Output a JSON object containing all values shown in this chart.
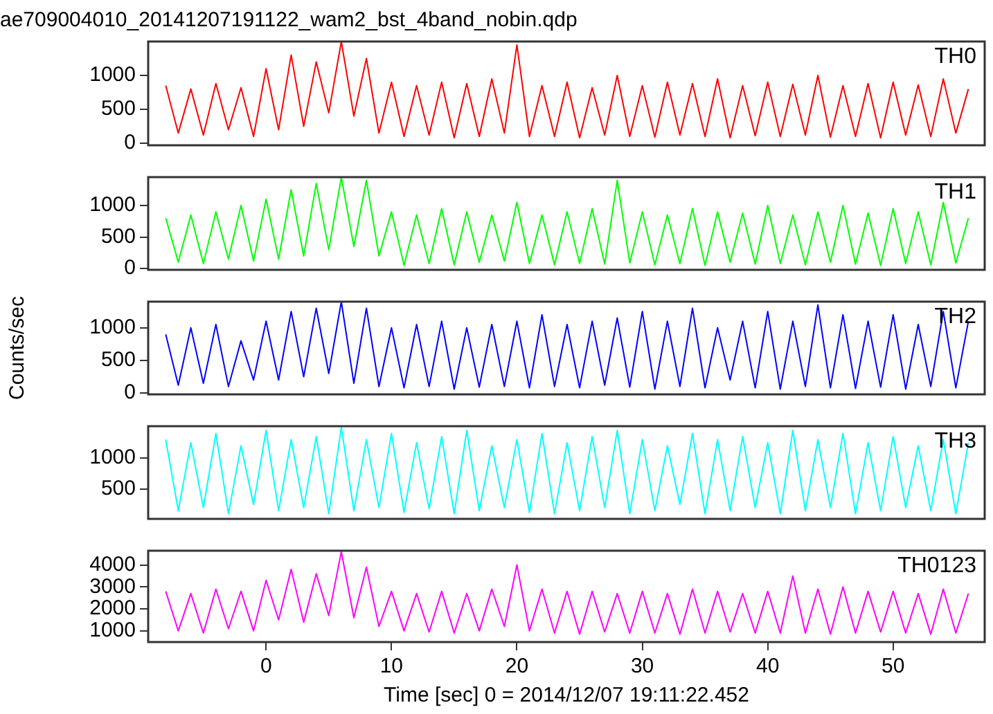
{
  "chart_data": [
    {
      "type": "line",
      "title": "ae709004010_20141207191122_wam2_bst_4band_nobin.qdp",
      "x": [
        -8,
        -7,
        -6,
        -5,
        -4,
        -3,
        -2,
        -1,
        0,
        1,
        2,
        3,
        4,
        5,
        6,
        7,
        8,
        9,
        10,
        11,
        12,
        13,
        14,
        15,
        16,
        17,
        18,
        19,
        20,
        21,
        22,
        23,
        24,
        25,
        26,
        27,
        28,
        29,
        30,
        31,
        32,
        33,
        34,
        35,
        36,
        37,
        38,
        39,
        40,
        41,
        42,
        43,
        44,
        45,
        46,
        47,
        48,
        49,
        50,
        51,
        52,
        53,
        54,
        55,
        56
      ],
      "xlim": [
        -9.4,
        57.3
      ],
      "ylim": [
        -30,
        1500
      ],
      "yticks": [
        0,
        500,
        1000
      ],
      "tick_labels": "y",
      "grid": false,
      "legend": false,
      "series": [
        {
          "name": "TH0",
          "color": "#ff0000",
          "values": [
            850,
            150,
            800,
            120,
            880,
            200,
            820,
            100,
            1100,
            200,
            1300,
            250,
            1200,
            450,
            1500,
            400,
            1250,
            150,
            900,
            100,
            850,
            120,
            900,
            80,
            880,
            100,
            950,
            150,
            1450,
            100,
            850,
            100,
            900,
            80,
            820,
            120,
            1000,
            100,
            850,
            90,
            900,
            120,
            880,
            100,
            950,
            80,
            850,
            110,
            900,
            100,
            870,
            120,
            1000,
            90,
            850,
            100,
            880,
            80,
            900,
            120,
            860,
            100,
            950,
            150,
            800
          ]
        }
      ]
    },
    {
      "type": "line",
      "x": [
        -8,
        -7,
        -6,
        -5,
        -4,
        -3,
        -2,
        -1,
        0,
        1,
        2,
        3,
        4,
        5,
        6,
        7,
        8,
        9,
        10,
        11,
        12,
        13,
        14,
        15,
        16,
        17,
        18,
        19,
        20,
        21,
        22,
        23,
        24,
        25,
        26,
        27,
        28,
        29,
        30,
        31,
        32,
        33,
        34,
        35,
        36,
        37,
        38,
        39,
        40,
        41,
        42,
        43,
        44,
        45,
        46,
        47,
        48,
        49,
        50,
        51,
        52,
        53,
        54,
        55,
        56
      ],
      "xlim": [
        -9.4,
        57.3
      ],
      "ylim": [
        -20,
        1450
      ],
      "yticks": [
        0,
        500,
        1000
      ],
      "tick_labels": "y",
      "grid": false,
      "legend": false,
      "series": [
        {
          "name": "TH1",
          "color": "#00ff00",
          "values": [
            800,
            100,
            850,
            80,
            900,
            150,
            1000,
            120,
            1100,
            150,
            1250,
            200,
            1350,
            300,
            1450,
            350,
            1400,
            200,
            900,
            50,
            850,
            80,
            950,
            60,
            900,
            100,
            850,
            120,
            1050,
            80,
            850,
            60,
            900,
            80,
            950,
            70,
            1400,
            90,
            900,
            60,
            850,
            80,
            950,
            50,
            900,
            100,
            880,
            70,
            1000,
            80,
            850,
            60,
            900,
            100,
            1000,
            70,
            880,
            50,
            950,
            80,
            900,
            60,
            1050,
            90,
            800
          ]
        }
      ]
    },
    {
      "type": "line",
      "ylabel": "Counts/sec",
      "x": [
        -8,
        -7,
        -6,
        -5,
        -4,
        -3,
        -2,
        -1,
        0,
        1,
        2,
        3,
        4,
        5,
        6,
        7,
        8,
        9,
        10,
        11,
        12,
        13,
        14,
        15,
        16,
        17,
        18,
        19,
        20,
        21,
        22,
        23,
        24,
        25,
        26,
        27,
        28,
        29,
        30,
        31,
        32,
        33,
        34,
        35,
        36,
        37,
        38,
        39,
        40,
        41,
        42,
        43,
        44,
        45,
        46,
        47,
        48,
        49,
        50,
        51,
        52,
        53,
        54,
        55,
        56
      ],
      "xlim": [
        -9.4,
        57.3
      ],
      "ylim": [
        -20,
        1400
      ],
      "yticks": [
        0,
        500,
        1000
      ],
      "tick_labels": "y",
      "grid": false,
      "legend": false,
      "series": [
        {
          "name": "TH2",
          "color": "#0000ff",
          "values": [
            900,
            120,
            1000,
            150,
            1050,
            100,
            800,
            200,
            1100,
            200,
            1250,
            250,
            1300,
            300,
            1400,
            150,
            1300,
            100,
            1000,
            80,
            1050,
            100,
            1100,
            60,
            1000,
            90,
            1050,
            100,
            1100,
            80,
            1200,
            100,
            1050,
            80,
            1100,
            120,
            1150,
            90,
            1250,
            60,
            1100,
            100,
            1300,
            80,
            1000,
            200,
            1100,
            80,
            1250,
            60,
            1100,
            100,
            1350,
            80,
            1200,
            70,
            1100,
            90,
            1200,
            60,
            1050,
            100,
            1250,
            80,
            1100
          ]
        }
      ]
    },
    {
      "type": "line",
      "x": [
        -8,
        -7,
        -6,
        -5,
        -4,
        -3,
        -2,
        -1,
        0,
        1,
        2,
        3,
        4,
        5,
        6,
        7,
        8,
        9,
        10,
        11,
        12,
        13,
        14,
        15,
        16,
        17,
        18,
        19,
        20,
        21,
        22,
        23,
        24,
        25,
        26,
        27,
        28,
        29,
        30,
        31,
        32,
        33,
        34,
        35,
        36,
        37,
        38,
        39,
        40,
        41,
        42,
        43,
        44,
        45,
        46,
        47,
        48,
        49,
        50,
        51,
        52,
        53,
        54,
        55,
        56
      ],
      "xlim": [
        -9.4,
        57.3
      ],
      "ylim": [
        17,
        1517
      ],
      "yticks": [
        500,
        1000
      ],
      "tick_labels": "y",
      "grid": false,
      "legend": false,
      "series": [
        {
          "name": "TH3",
          "color": "#00ffff",
          "values": [
            1300,
            150,
            1250,
            200,
            1400,
            100,
            1200,
            250,
            1450,
            150,
            1300,
            200,
            1350,
            100,
            1500,
            150,
            1300,
            200,
            1400,
            120,
            1250,
            180,
            1350,
            100,
            1450,
            150,
            1200,
            200,
            1300,
            120,
            1400,
            100,
            1250,
            150,
            1350,
            200,
            1450,
            100,
            1300,
            150,
            1200,
            250,
            1400,
            100,
            1300,
            150,
            1350,
            200,
            1250,
            100,
            1450,
            150,
            1300,
            200,
            1400,
            100,
            1250,
            150,
            1350,
            200,
            1200,
            150,
            1300,
            100,
            1250
          ]
        }
      ]
    },
    {
      "type": "line",
      "xlabel": "Time [sec] 0 = 2014/12/07 19:11:22.452",
      "x": [
        -8,
        -7,
        -6,
        -5,
        -4,
        -3,
        -2,
        -1,
        0,
        1,
        2,
        3,
        4,
        5,
        6,
        7,
        8,
        9,
        10,
        11,
        12,
        13,
        14,
        15,
        16,
        17,
        18,
        19,
        20,
        21,
        22,
        23,
        24,
        25,
        26,
        27,
        28,
        29,
        30,
        31,
        32,
        33,
        34,
        35,
        36,
        37,
        38,
        39,
        40,
        41,
        42,
        43,
        44,
        45,
        46,
        47,
        48,
        49,
        50,
        51,
        52,
        53,
        54,
        55,
        56
      ],
      "xlim": [
        -9.4,
        57.3
      ],
      "xticks": [
        0,
        10,
        20,
        30,
        40,
        50
      ],
      "ylim": [
        493,
        4645
      ],
      "yticks": [
        1000,
        2000,
        3000,
        4000
      ],
      "grid": false,
      "legend": false,
      "series": [
        {
          "name": "TH0123",
          "color": "#ff00ff",
          "values": [
            2800,
            1000,
            2700,
            900,
            2900,
            1100,
            2800,
            1000,
            3300,
            1500,
            3800,
            1400,
            3600,
            1700,
            4600,
            1600,
            3900,
            1200,
            2800,
            1000,
            2700,
            950,
            2800,
            900,
            2700,
            1000,
            2900,
            1200,
            4000,
            1000,
            2900,
            900,
            2800,
            850,
            2800,
            950,
            2700,
            900,
            2800,
            900,
            2700,
            850,
            2900,
            900,
            2800,
            950,
            2700,
            900,
            2800,
            900,
            3500,
            900,
            2900,
            850,
            3000,
            900,
            2800,
            950,
            2800,
            900,
            2700,
            850,
            2900,
            900,
            2700
          ]
        }
      ]
    }
  ]
}
